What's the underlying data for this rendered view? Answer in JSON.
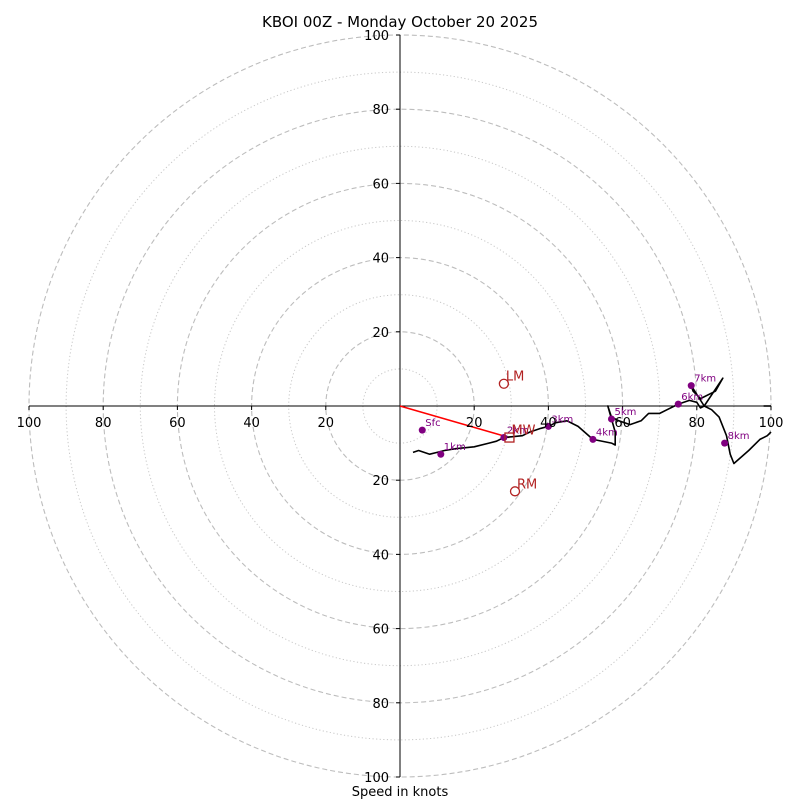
{
  "chart_data": {
    "type": "hodograph",
    "title": "KBOI 00Z - Monday October 20 2025",
    "xlabel": "Speed in knots",
    "units": "knots",
    "range": [
      -100,
      100
    ],
    "rings_major": [
      20,
      40,
      60,
      80,
      100
    ],
    "rings_minor": [
      10,
      30,
      50,
      70,
      90
    ],
    "x_tick_labels": [
      "100",
      "80",
      "60",
      "40",
      "20",
      "20",
      "40",
      "60",
      "80",
      "100"
    ],
    "y_tick_labels": [
      "100",
      "80",
      "60",
      "40",
      "20",
      "20",
      "40",
      "60",
      "80",
      "100"
    ],
    "profile": [
      [
        3.5,
        -12.5
      ],
      [
        5,
        -12
      ],
      [
        8,
        -13
      ],
      [
        10,
        -12.5
      ],
      [
        12,
        -12
      ],
      [
        15,
        -11.5
      ],
      [
        20,
        -11
      ],
      [
        24,
        -10
      ],
      [
        26,
        -9.5
      ],
      [
        28,
        -8.5
      ],
      [
        30,
        -8.3
      ],
      [
        33,
        -8
      ],
      [
        35,
        -7
      ],
      [
        38,
        -6
      ],
      [
        40,
        -5.5
      ],
      [
        42,
        -4.5
      ],
      [
        45,
        -4
      ],
      [
        48,
        -5.5
      ],
      [
        52,
        -9
      ],
      [
        57,
        -10
      ],
      [
        58,
        -10.5
      ],
      [
        58,
        -7
      ],
      [
        56,
        0
      ],
      [
        57,
        -3
      ],
      [
        59,
        -4
      ],
      [
        62,
        -5
      ],
      [
        65,
        -4
      ],
      [
        66,
        -3
      ],
      [
        67,
        -2
      ],
      [
        70,
        -2
      ],
      [
        72,
        -1
      ],
      [
        75,
        0.5
      ],
      [
        78,
        1.5
      ],
      [
        80,
        1
      ],
      [
        81,
        -0.5
      ],
      [
        82,
        0
      ],
      [
        84,
        3
      ],
      [
        86,
        6
      ],
      [
        87,
        7.5
      ],
      [
        85,
        4
      ],
      [
        81,
        2
      ],
      [
        79,
        4
      ],
      [
        78.5,
        5.5
      ],
      [
        82,
        0
      ],
      [
        84,
        -1
      ],
      [
        86,
        -3
      ],
      [
        88,
        -8
      ],
      [
        89,
        -13
      ],
      [
        90,
        -15.5
      ],
      [
        94,
        -12
      ],
      [
        97,
        -9
      ],
      [
        99,
        -8
      ],
      [
        100,
        -7
      ]
    ],
    "profile_tail": [
      [
        98,
        0
      ],
      [
        100,
        0
      ]
    ],
    "height_markers": [
      {
        "label": "Sfc",
        "u": 6,
        "v": -6.5
      },
      {
        "label": "1km",
        "u": 11,
        "v": -13
      },
      {
        "label": "2km",
        "u": 28,
        "v": -8.5
      },
      {
        "label": "3km",
        "u": 40,
        "v": -5.5
      },
      {
        "label": "4km",
        "u": 52,
        "v": -9
      },
      {
        "label": "5km",
        "u": 57,
        "v": -3.5
      },
      {
        "label": "6km",
        "u": 75,
        "v": 0.5
      },
      {
        "label": "7km",
        "u": 78.5,
        "v": 5.5
      },
      {
        "label": "8km",
        "u": 87.5,
        "v": -10
      }
    ],
    "storm_motion": [
      {
        "label": "LM",
        "u": 28,
        "v": 6,
        "marker": "circle"
      },
      {
        "label": "RM",
        "u": 31,
        "v": -23,
        "marker": "circle"
      },
      {
        "label": "MW",
        "u": 29.5,
        "v": -8.5,
        "marker": "square"
      }
    ],
    "mean_wind_vector": {
      "from": [
        0,
        0
      ],
      "to": [
        29.5,
        -8.5
      ],
      "color": "#ff0000"
    }
  }
}
